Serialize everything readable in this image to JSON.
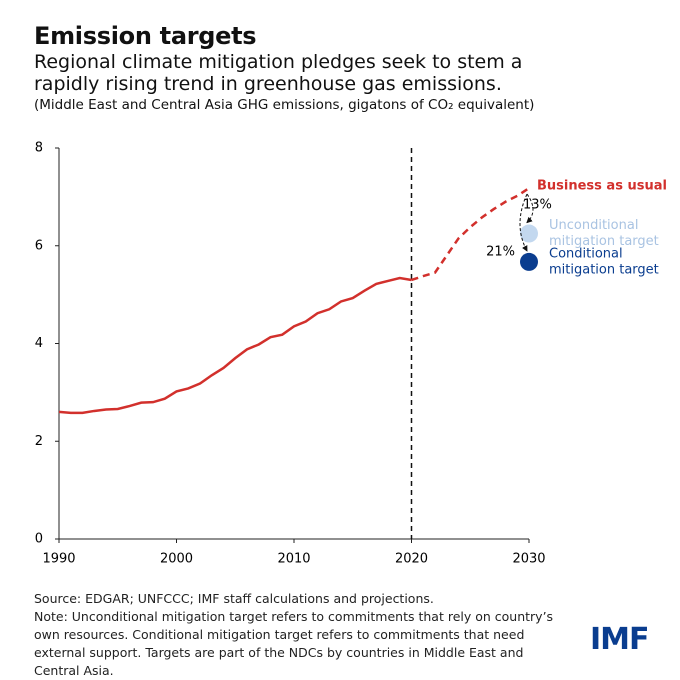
{
  "chart_data": {
    "type": "line",
    "title": "Emission targets",
    "subtitle": "Regional climate mitigation pledges seek to stem a rapidly rising trend in greenhouse gas emissions.",
    "units": "(Middle East and Central Asia GHG emissions, gigatons of CO₂ equivalent)",
    "x": [
      1990,
      1991,
      1992,
      1993,
      1994,
      1995,
      1996,
      1997,
      1998,
      1999,
      2000,
      2001,
      2002,
      2003,
      2004,
      2005,
      2006,
      2007,
      2008,
      2009,
      2010,
      2011,
      2012,
      2013,
      2014,
      2015,
      2016,
      2017,
      2018,
      2019,
      2020,
      2021,
      2022,
      2023,
      2024,
      2025,
      2026,
      2027,
      2028,
      2029,
      2030
    ],
    "series": [
      {
        "color": "#d2302c",
        "style": "solid",
        "values": [
          2.6,
          2.58,
          2.58,
          2.62,
          2.65,
          2.66,
          2.72,
          2.79,
          2.8,
          2.87,
          3.02,
          3.08,
          3.18,
          3.35,
          3.5,
          3.7,
          3.88,
          3.98,
          4.13,
          4.18,
          4.35,
          4.45,
          4.62,
          4.7,
          4.86,
          4.93,
          5.08,
          5.22,
          5.28,
          5.34,
          5.3,
          null,
          null,
          null,
          null,
          null,
          null,
          null,
          null,
          null,
          null
        ]
      },
      {
        "name": "Business as usual",
        "color": "#d2302c",
        "style": "dashed",
        "values": [
          null,
          null,
          null,
          null,
          null,
          null,
          null,
          null,
          null,
          null,
          null,
          null,
          null,
          null,
          null,
          null,
          null,
          null,
          null,
          null,
          null,
          null,
          null,
          null,
          null,
          null,
          null,
          null,
          null,
          null,
          5.3,
          5.38,
          5.45,
          5.8,
          6.15,
          6.38,
          6.58,
          6.75,
          6.9,
          7.02,
          7.18
        ]
      }
    ],
    "targets": [
      {
        "name": [
          "Unconditional",
          "mitigation target"
        ],
        "x": 2030,
        "value": 6.25,
        "color": "#c3d8ef",
        "reduction": 13,
        "reduction_label": "13%"
      },
      {
        "name": [
          "Conditional",
          "mitigation target"
        ],
        "x": 2030,
        "value": 5.67,
        "color": "#0a3d8f",
        "reduction": 21,
        "reduction_label": "21%"
      }
    ],
    "vline": 2020,
    "xlim": [
      1990,
      2030
    ],
    "xticks": [
      1990,
      2000,
      2010,
      2020,
      2030
    ],
    "ylim": [
      0,
      8
    ],
    "yticks": [
      0,
      2,
      4,
      6,
      8
    ],
    "source": "Source: EDGAR; UNFCCC; IMF staff calculations and projections.",
    "note": "Note: Unconditional mitigation target refers to commitments that rely on country’s own resources. Conditional mitigation target refers to commitments that need external support. Targets are part of the NDCs by countries in Middle East and Central Asia.",
    "logo": "IMF"
  }
}
